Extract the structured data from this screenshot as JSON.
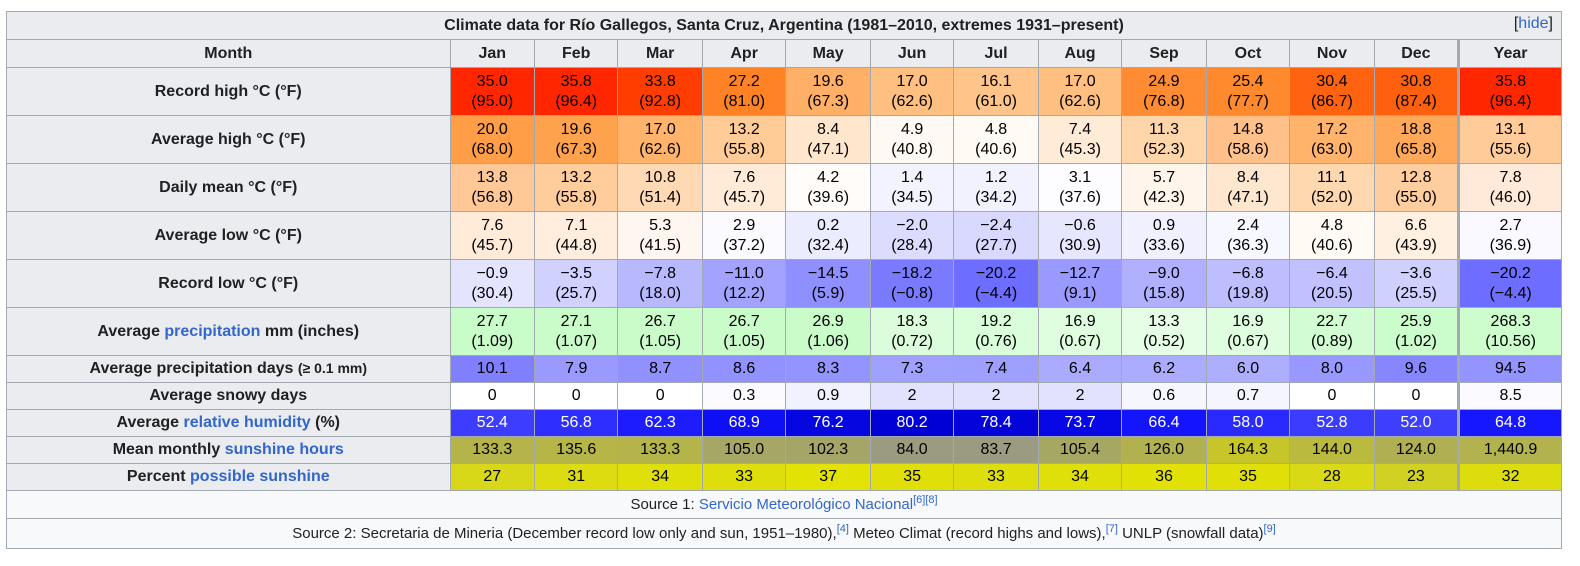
{
  "title": "Climate data for Río Gallegos, Santa Cruz, Argentina (1981–2010, extremes 1931–present)",
  "hide": {
    "open": "[",
    "label": "hide",
    "close": "]"
  },
  "header": {
    "month": "Month",
    "months": [
      "Jan",
      "Feb",
      "Mar",
      "Apr",
      "May",
      "Jun",
      "Jul",
      "Aug",
      "Sep",
      "Oct",
      "Nov",
      "Dec"
    ],
    "year": "Year"
  },
  "rows": [
    {
      "label": "Record high °C (°F)",
      "cells": [
        {
          "t": "35.0",
          "s": "(95.0)",
          "bg": "#ff2600",
          "fg": "#000"
        },
        {
          "t": "35.8",
          "s": "(96.4)",
          "bg": "#ff2600",
          "fg": "#000"
        },
        {
          "t": "33.8",
          "s": "(92.8)",
          "bg": "#ff3d00",
          "fg": "#000"
        },
        {
          "t": "27.2",
          "s": "(81.0)",
          "bg": "#ff8224",
          "fg": "#000"
        },
        {
          "t": "19.6",
          "s": "(67.3)",
          "bg": "#ffb066",
          "fg": "#000"
        },
        {
          "t": "17.0",
          "s": "(62.6)",
          "bg": "#ffbf80",
          "fg": "#000"
        },
        {
          "t": "16.1",
          "s": "(61.0)",
          "bg": "#ffc48a",
          "fg": "#000"
        },
        {
          "t": "17.0",
          "s": "(62.6)",
          "bg": "#ffbf80",
          "fg": "#000"
        },
        {
          "t": "24.9",
          "s": "(76.8)",
          "bg": "#ff8c33",
          "fg": "#000"
        },
        {
          "t": "25.4",
          "s": "(77.7)",
          "bg": "#ff8a2e",
          "fg": "#000"
        },
        {
          "t": "30.4",
          "s": "(86.7)",
          "bg": "#ff6310",
          "fg": "#000"
        },
        {
          "t": "30.8",
          "s": "(87.4)",
          "bg": "#ff600d",
          "fg": "#000"
        },
        {
          "t": "35.8",
          "s": "(96.4)",
          "bg": "#ff2600",
          "fg": "#000"
        }
      ]
    },
    {
      "label": "Average high °C (°F)",
      "cells": [
        {
          "t": "20.0",
          "s": "(68.0)",
          "bg": "#ff9e47",
          "fg": "#000"
        },
        {
          "t": "19.6",
          "s": "(67.3)",
          "bg": "#ffa24e",
          "fg": "#000"
        },
        {
          "t": "17.0",
          "s": "(62.6)",
          "bg": "#ffb36b",
          "fg": "#000"
        },
        {
          "t": "13.2",
          "s": "(55.8)",
          "bg": "#ffcb97",
          "fg": "#000"
        },
        {
          "t": "8.4",
          "s": "(47.1)",
          "bg": "#ffe6cc",
          "fg": "#000"
        },
        {
          "t": "4.9",
          "s": "(40.8)",
          "bg": "#fff9f3",
          "fg": "#000"
        },
        {
          "t": "4.8",
          "s": "(40.6)",
          "bg": "#fffaf4",
          "fg": "#000"
        },
        {
          "t": "7.4",
          "s": "(45.3)",
          "bg": "#ffebd6",
          "fg": "#000"
        },
        {
          "t": "11.3",
          "s": "(52.3)",
          "bg": "#ffd5aa",
          "fg": "#000"
        },
        {
          "t": "14.8",
          "s": "(58.6)",
          "bg": "#ffc08a",
          "fg": "#000"
        },
        {
          "t": "17.2",
          "s": "(63.0)",
          "bg": "#ffb36b",
          "fg": "#000"
        },
        {
          "t": "18.8",
          "s": "(65.8)",
          "bg": "#ffa85a",
          "fg": "#000"
        },
        {
          "t": "13.1",
          "s": "(55.6)",
          "bg": "#ffcc99",
          "fg": "#000"
        }
      ]
    },
    {
      "label": "Daily mean °C (°F)",
      "cells": [
        {
          "t": "13.8",
          "s": "(56.8)",
          "bg": "#ffc896",
          "fg": "#000"
        },
        {
          "t": "13.2",
          "s": "(55.8)",
          "bg": "#ffcc9c",
          "fg": "#000"
        },
        {
          "t": "10.8",
          "s": "(51.4)",
          "bg": "#ffd9b3",
          "fg": "#000"
        },
        {
          "t": "7.6",
          "s": "(45.7)",
          "bg": "#ffebd8",
          "fg": "#000"
        },
        {
          "t": "4.2",
          "s": "(39.6)",
          "bg": "#fffcf9",
          "fg": "#000"
        },
        {
          "t": "1.4",
          "s": "(34.5)",
          "bg": "#f3f3ff",
          "fg": "#000"
        },
        {
          "t": "1.2",
          "s": "(34.2)",
          "bg": "#f2f2ff",
          "fg": "#000"
        },
        {
          "t": "3.1",
          "s": "(37.6)",
          "bg": "#fdfdff",
          "fg": "#000"
        },
        {
          "t": "5.7",
          "s": "(42.3)",
          "bg": "#fff5ea",
          "fg": "#000"
        },
        {
          "t": "8.4",
          "s": "(47.1)",
          "bg": "#ffe7cf",
          "fg": "#000"
        },
        {
          "t": "11.1",
          "s": "(52.0)",
          "bg": "#ffd8b0",
          "fg": "#000"
        },
        {
          "t": "12.8",
          "s": "(55.0)",
          "bg": "#ffce9f",
          "fg": "#000"
        },
        {
          "t": "7.8",
          "s": "(46.0)",
          "bg": "#ffeada",
          "fg": "#000"
        }
      ]
    },
    {
      "label": "Average low °C (°F)",
      "cells": [
        {
          "t": "7.6",
          "s": "(45.7)",
          "bg": "#ffebd8",
          "fg": "#000"
        },
        {
          "t": "7.1",
          "s": "(44.8)",
          "bg": "#ffeedd",
          "fg": "#000"
        },
        {
          "t": "5.3",
          "s": "(41.5)",
          "bg": "#fff7ef",
          "fg": "#000"
        },
        {
          "t": "2.9",
          "s": "(37.2)",
          "bg": "#fafaff",
          "fg": "#000"
        },
        {
          "t": "0.2",
          "s": "(32.4)",
          "bg": "#ececff",
          "fg": "#000"
        },
        {
          "t": "−2.0",
          "s": "(28.4)",
          "bg": "#dcdcff",
          "fg": "#000"
        },
        {
          "t": "−2.4",
          "s": "(27.7)",
          "bg": "#d9d9ff",
          "fg": "#000"
        },
        {
          "t": "−0.6",
          "s": "(30.9)",
          "bg": "#e6e6ff",
          "fg": "#000"
        },
        {
          "t": "0.9",
          "s": "(33.6)",
          "bg": "#f0f0ff",
          "fg": "#000"
        },
        {
          "t": "2.4",
          "s": "(36.3)",
          "bg": "#f7f7ff",
          "fg": "#000"
        },
        {
          "t": "4.8",
          "s": "(40.6)",
          "bg": "#fffaf4",
          "fg": "#000"
        },
        {
          "t": "6.6",
          "s": "(43.9)",
          "bg": "#fff0e1",
          "fg": "#000"
        },
        {
          "t": "2.7",
          "s": "(36.9)",
          "bg": "#f9f9ff",
          "fg": "#000"
        }
      ]
    },
    {
      "label": "Record low °C (°F)",
      "cells": [
        {
          "t": "−0.9",
          "s": "(30.4)",
          "bg": "#e4e4ff",
          "fg": "#000"
        },
        {
          "t": "−3.5",
          "s": "(25.7)",
          "bg": "#d1d1ff",
          "fg": "#000"
        },
        {
          "t": "−7.8",
          "s": "(18.0)",
          "bg": "#b8b8ff",
          "fg": "#000"
        },
        {
          "t": "−11.0",
          "s": "(12.2)",
          "bg": "#a3a3ff",
          "fg": "#000"
        },
        {
          "t": "−14.5",
          "s": "(5.9)",
          "bg": "#8f8fff",
          "fg": "#000"
        },
        {
          "t": "−18.2",
          "s": "(−0.8)",
          "bg": "#7a7aff",
          "fg": "#000"
        },
        {
          "t": "−20.2",
          "s": "(−4.4)",
          "bg": "#6d6dff",
          "fg": "#000"
        },
        {
          "t": "−12.7",
          "s": "(9.1)",
          "bg": "#9999ff",
          "fg": "#000"
        },
        {
          "t": "−9.0",
          "s": "(15.8)",
          "bg": "#b0b0ff",
          "fg": "#000"
        },
        {
          "t": "−6.8",
          "s": "(19.8)",
          "bg": "#bebeff",
          "fg": "#000"
        },
        {
          "t": "−6.4",
          "s": "(20.5)",
          "bg": "#c1c1ff",
          "fg": "#000"
        },
        {
          "t": "−3.6",
          "s": "(25.5)",
          "bg": "#d0d0ff",
          "fg": "#000"
        },
        {
          "t": "−20.2",
          "s": "(−4.4)",
          "bg": "#6d6dff",
          "fg": "#000"
        }
      ]
    },
    {
      "label_pre": "Average ",
      "label_link": "precipitation",
      "label_post": " mm (inches)",
      "cells": [
        {
          "t": "27.7",
          "s": "(1.09)",
          "bg": "#c8fcc8",
          "fg": "#000"
        },
        {
          "t": "27.1",
          "s": "(1.07)",
          "bg": "#c9fcc9",
          "fg": "#000"
        },
        {
          "t": "26.7",
          "s": "(1.05)",
          "bg": "#cafcca",
          "fg": "#000"
        },
        {
          "t": "26.7",
          "s": "(1.05)",
          "bg": "#cafcca",
          "fg": "#000"
        },
        {
          "t": "26.9",
          "s": "(1.06)",
          "bg": "#c9fcc9",
          "fg": "#000"
        },
        {
          "t": "18.3",
          "s": "(0.72)",
          "bg": "#dcfddc",
          "fg": "#000"
        },
        {
          "t": "19.2",
          "s": "(0.76)",
          "bg": "#dafdda",
          "fg": "#000"
        },
        {
          "t": "16.9",
          "s": "(0.67)",
          "bg": "#dffddf",
          "fg": "#000"
        },
        {
          "t": "13.3",
          "s": "(0.52)",
          "bg": "#e6fee6",
          "fg": "#000"
        },
        {
          "t": "16.9",
          "s": "(0.67)",
          "bg": "#dffddf",
          "fg": "#000"
        },
        {
          "t": "22.7",
          "s": "(0.89)",
          "bg": "#d2fcd2",
          "fg": "#000"
        },
        {
          "t": "25.9",
          "s": "(1.02)",
          "bg": "#cbfccb",
          "fg": "#000"
        },
        {
          "t": "268.3",
          "s": "(10.56)",
          "bg": "#cdfccd",
          "fg": "#000"
        }
      ]
    },
    {
      "label_pre": "Average precipitation days ",
      "label_small": "(≥ 0.1 mm)",
      "short": true,
      "cells": [
        {
          "t": "10.1",
          "bg": "#8080ff",
          "fg": "#000"
        },
        {
          "t": "7.9",
          "bg": "#9999ff",
          "fg": "#000"
        },
        {
          "t": "8.7",
          "bg": "#9090ff",
          "fg": "#000"
        },
        {
          "t": "8.6",
          "bg": "#9191ff",
          "fg": "#000"
        },
        {
          "t": "8.3",
          "bg": "#9494ff",
          "fg": "#000"
        },
        {
          "t": "7.3",
          "bg": "#a0a0ff",
          "fg": "#000"
        },
        {
          "t": "7.4",
          "bg": "#9f9fff",
          "fg": "#000"
        },
        {
          "t": "6.4",
          "bg": "#aaaaff",
          "fg": "#000"
        },
        {
          "t": "6.2",
          "bg": "#acacff",
          "fg": "#000"
        },
        {
          "t": "6.0",
          "bg": "#aeaeff",
          "fg": "#000"
        },
        {
          "t": "8.0",
          "bg": "#9898ff",
          "fg": "#000"
        },
        {
          "t": "9.6",
          "bg": "#8686ff",
          "fg": "#000"
        },
        {
          "t": "94.5",
          "bg": "#9494ff",
          "fg": "#000"
        }
      ]
    },
    {
      "label_pre": "Average snowy days",
      "short": true,
      "cells": [
        {
          "t": "0",
          "bg": "#ffffff",
          "fg": "#000"
        },
        {
          "t": "0",
          "bg": "#ffffff",
          "fg": "#000"
        },
        {
          "t": "0",
          "bg": "#ffffff",
          "fg": "#000"
        },
        {
          "t": "0.3",
          "bg": "#fbfbff",
          "fg": "#000"
        },
        {
          "t": "0.9",
          "bg": "#f2f2ff",
          "fg": "#000"
        },
        {
          "t": "2",
          "bg": "#e2e2ff",
          "fg": "#000"
        },
        {
          "t": "2",
          "bg": "#e2e2ff",
          "fg": "#000"
        },
        {
          "t": "2",
          "bg": "#e2e2ff",
          "fg": "#000"
        },
        {
          "t": "0.6",
          "bg": "#f6f6ff",
          "fg": "#000"
        },
        {
          "t": "0.7",
          "bg": "#f5f5ff",
          "fg": "#000"
        },
        {
          "t": "0",
          "bg": "#ffffff",
          "fg": "#000"
        },
        {
          "t": "0",
          "bg": "#ffffff",
          "fg": "#000"
        },
        {
          "t": "8.5",
          "bg": "#fafaff",
          "fg": "#000"
        }
      ]
    },
    {
      "label_pre": "Average ",
      "label_link": "relative humidity",
      "label_post": " (%)",
      "short": true,
      "cells": [
        {
          "t": "52.4",
          "bg": "#3d3dff",
          "fg": "#fff"
        },
        {
          "t": "56.8",
          "bg": "#2e2eff",
          "fg": "#fff"
        },
        {
          "t": "62.3",
          "bg": "#1c1cff",
          "fg": "#fff"
        },
        {
          "t": "68.9",
          "bg": "#0f0ff6",
          "fg": "#fff"
        },
        {
          "t": "76.2",
          "bg": "#0606e0",
          "fg": "#fff"
        },
        {
          "t": "80.2",
          "bg": "#0000d6",
          "fg": "#fff"
        },
        {
          "t": "78.4",
          "bg": "#0303da",
          "fg": "#fff"
        },
        {
          "t": "73.7",
          "bg": "#0808e6",
          "fg": "#fff"
        },
        {
          "t": "66.4",
          "bg": "#1414ff",
          "fg": "#fff"
        },
        {
          "t": "58.0",
          "bg": "#2a2aff",
          "fg": "#fff"
        },
        {
          "t": "52.8",
          "bg": "#3c3cff",
          "fg": "#fff"
        },
        {
          "t": "52.0",
          "bg": "#3e3eff",
          "fg": "#fff"
        },
        {
          "t": "64.8",
          "bg": "#1717ff",
          "fg": "#fff"
        }
      ]
    },
    {
      "label_pre": "Mean monthly ",
      "label_link": "sunshine hours",
      "short": true,
      "cells": [
        {
          "t": "133.3",
          "bg": "#b4b44a",
          "fg": "#000"
        },
        {
          "t": "135.6",
          "bg": "#b6b648",
          "fg": "#000"
        },
        {
          "t": "133.3",
          "bg": "#b4b44a",
          "fg": "#000"
        },
        {
          "t": "105.0",
          "bg": "#a7a765",
          "fg": "#000"
        },
        {
          "t": "102.3",
          "bg": "#a5a567",
          "fg": "#000"
        },
        {
          "t": "84.0",
          "bg": "#9b9b80",
          "fg": "#000"
        },
        {
          "t": "83.7",
          "bg": "#9b9b81",
          "fg": "#000"
        },
        {
          "t": "105.4",
          "bg": "#a7a764",
          "fg": "#000"
        },
        {
          "t": "126.0",
          "bg": "#b1b150",
          "fg": "#000"
        },
        {
          "t": "164.3",
          "bg": "#c6c62b",
          "fg": "#000"
        },
        {
          "t": "144.0",
          "bg": "#baba3e",
          "fg": "#000"
        },
        {
          "t": "124.0",
          "bg": "#b0b052",
          "fg": "#000"
        },
        {
          "t": "1,440.9",
          "bg": "#b2b24e",
          "fg": "#000"
        }
      ]
    },
    {
      "label_pre": "Percent ",
      "label_link": "possible sunshine",
      "short": true,
      "cells": [
        {
          "t": "27",
          "bg": "#d8d818",
          "fg": "#000"
        },
        {
          "t": "31",
          "bg": "#dcdc10",
          "fg": "#000"
        },
        {
          "t": "34",
          "bg": "#dfdf0a",
          "fg": "#000"
        },
        {
          "t": "33",
          "bg": "#dede0c",
          "fg": "#000"
        },
        {
          "t": "37",
          "bg": "#e2e205",
          "fg": "#000"
        },
        {
          "t": "35",
          "bg": "#e0e008",
          "fg": "#000"
        },
        {
          "t": "33",
          "bg": "#dede0c",
          "fg": "#000"
        },
        {
          "t": "34",
          "bg": "#dfdf0a",
          "fg": "#000"
        },
        {
          "t": "36",
          "bg": "#e1e106",
          "fg": "#000"
        },
        {
          "t": "35",
          "bg": "#e0e008",
          "fg": "#000"
        },
        {
          "t": "28",
          "bg": "#d9d916",
          "fg": "#000"
        },
        {
          "t": "23",
          "bg": "#d1d122",
          "fg": "#000"
        },
        {
          "t": "32",
          "bg": "#dddd0e",
          "fg": "#000"
        }
      ]
    }
  ],
  "source1": {
    "prefix": "Source 1: ",
    "link": "Servicio Meteorológico Nacional",
    "refs": [
      "[6]",
      "[8]"
    ]
  },
  "source2": {
    "p1": "Source 2: Secretaria de Mineria (December record low only and sun, 1951–1980),",
    "r1": "[4]",
    "p2": " Meteo Climat (record highs and lows),",
    "r2": "[7]",
    "p3": " UNLP (snowfall data)",
    "r3": "[9]"
  }
}
